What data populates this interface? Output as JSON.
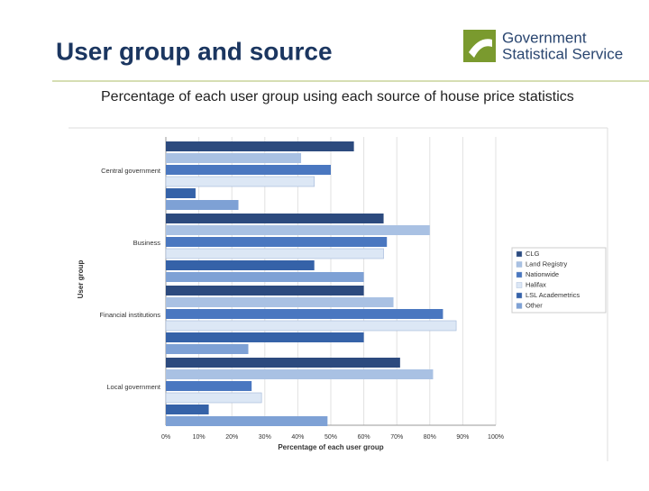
{
  "header": {
    "title": "User group and source",
    "logo": [
      "Government",
      "Statistical Service"
    ]
  },
  "chart_data": {
    "type": "hbar",
    "title": "Percentage of each user group using each source of house price statistics",
    "y_label": "User group",
    "x_label": "Percentage of each user group",
    "categories": [
      "Central government",
      "Business",
      "Financial institutions",
      "Local government"
    ],
    "series": [
      {
        "name": "CLG",
        "color": "#2c4a7e",
        "values": [
          57,
          66,
          60,
          71
        ]
      },
      {
        "name": "Land Registry",
        "color": "#a9c1e3",
        "values": [
          41,
          80,
          69,
          81
        ]
      },
      {
        "name": "Nationwide",
        "color": "#4a77c0",
        "values": [
          50,
          67,
          84,
          26
        ]
      },
      {
        "name": "Halifax",
        "color": "#dce7f5",
        "values": [
          45,
          66,
          88,
          29
        ]
      },
      {
        "name": "LSL Academetrics",
        "color": "#3562a8",
        "values": [
          9,
          45,
          60,
          13
        ]
      },
      {
        "name": "Other",
        "color": "#7ea1d5",
        "values": [
          22,
          60,
          25,
          49
        ]
      }
    ],
    "xlim": [
      0,
      100
    ],
    "xticks": [
      {
        "value": 0,
        "label": "0%"
      },
      {
        "value": 10,
        "label": "10%"
      },
      {
        "value": 20,
        "label": "20%"
      },
      {
        "value": 30,
        "label": "30%"
      },
      {
        "value": 40,
        "label": "40%"
      },
      {
        "value": 50,
        "label": "50%"
      },
      {
        "value": 60,
        "label": "60%"
      },
      {
        "value": 70,
        "label": "70%"
      },
      {
        "value": 80,
        "label": "80%"
      },
      {
        "value": 90,
        "label": "90%"
      },
      {
        "value": 100,
        "label": "100%"
      }
    ],
    "grid": true,
    "legend": "right"
  }
}
